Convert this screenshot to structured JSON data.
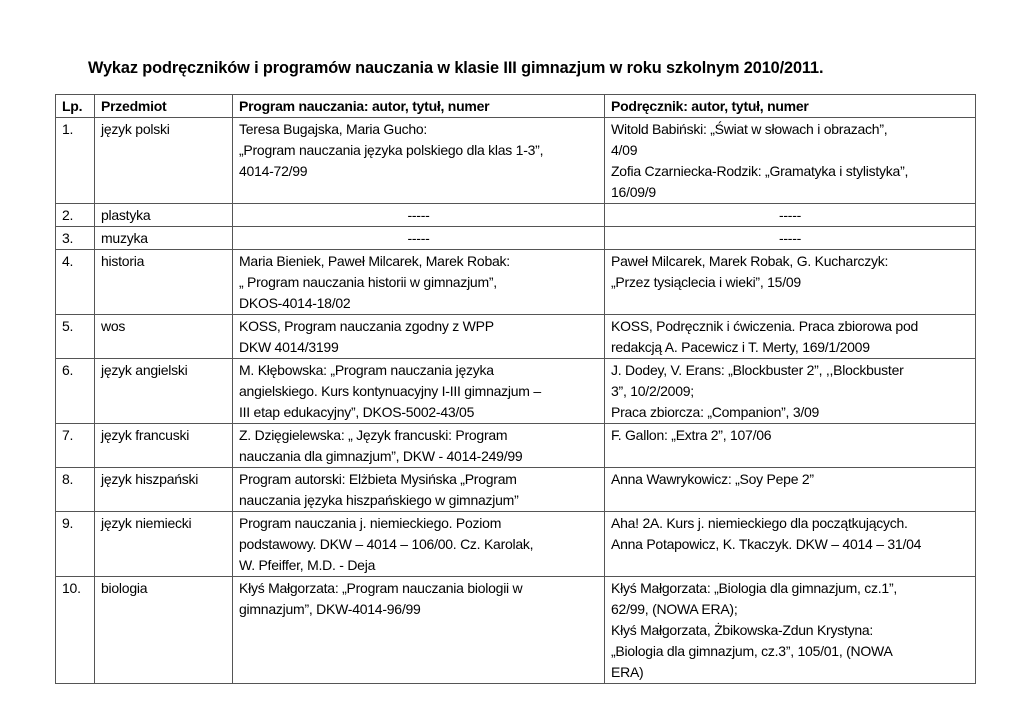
{
  "title": "Wykaz podręczników i programów nauczania w klasie III gimnazjum w roku szkolnym 2010/2011.",
  "table": {
    "headers": [
      "Lp.",
      "Przedmiot",
      "Program nauczania: autor, tytuł, numer",
      "Podręcznik: autor, tytuł, numer"
    ],
    "rows": [
      [
        "1.",
        "język polski",
        "Teresa Bugajska, Maria Gucho:\n„Program nauczania języka polskiego dla klas 1-3”,\n4014-72/99",
        "Witold Babiński: „Świat w słowach i obrazach”,\n4/09\nZofia Czarniecka-Rodzik: „Gramatyka i stylistyka”,\n16/09/9"
      ],
      [
        "2.",
        "plastyka",
        "-----",
        "-----"
      ],
      [
        "3.",
        "muzyka",
        "-----",
        "-----"
      ],
      [
        "4.",
        "historia",
        "Maria Bieniek, Paweł Milcarek, Marek Robak:\n„ Program nauczania historii w gimnazjum”,\nDKOS-4014-18/02",
        "Paweł Milcarek, Marek Robak, G. Kucharczyk:\n„Przez tysiąclecia i wieki”, 15/09"
      ],
      [
        "5.",
        "wos",
        "KOSS, Program nauczania zgodny z WPP\nDKW 4014/3199",
        "KOSS, Podręcznik i ćwiczenia. Praca zbiorowa pod\nredakcją A. Pacewicz i T. Merty, 169/1/2009"
      ],
      [
        "6.",
        "język angielski",
        "M. Kłębowska: „Program nauczania języka\nangielskiego. Kurs kontynuacyjny I-III gimnazjum –\nIII etap edukacyjny”, DKOS-5002-43/05",
        "J. Dodey, V. Erans: „Blockbuster 2”, ,,Blockbuster\n3”, 10/2/2009;\nPraca zbiorcza: „Companion”, 3/09"
      ],
      [
        "7.",
        "język francuski",
        "Z. Dzięgielewska: „ Język francuski: Program\nnauczania dla gimnazjum”, DKW - 4014-249/99",
        "F. Gallon: „Extra 2”, 107/06"
      ],
      [
        "8.",
        "język hiszpański",
        "Program autorski: Elżbieta Mysińska „Program\nnauczania języka hiszpańskiego w gimnazjum”",
        "Anna Wawrykowicz: „Soy Pepe 2”"
      ],
      [
        "9.",
        "język niemiecki",
        "Program nauczania j. niemieckiego. Poziom\npodstawowy. DKW – 4014 – 106/00. Cz. Karolak,\nW. Pfeiffer, M.D. - Deja",
        "Aha! 2A. Kurs j. niemieckiego dla początkujących.\nAnna Potapowicz, K. Tkaczyk. DKW – 4014 – 31/04"
      ],
      [
        "10.",
        "biologia",
        "Kłyś Małgorzata: „Program nauczania biologii w\ngimnazjum”, DKW-4014-96/99",
        "Kłyś Małgorzata: „Biologia dla gimnazjum, cz.1”,\n62/99, (NOWA ERA);\nKłyś Małgorzata, Żbikowska-Zdun Krystyna:\n„Biologia dla gimnazjum, cz.3”, 105/01, (NOWA\nERA)"
      ]
    ]
  }
}
